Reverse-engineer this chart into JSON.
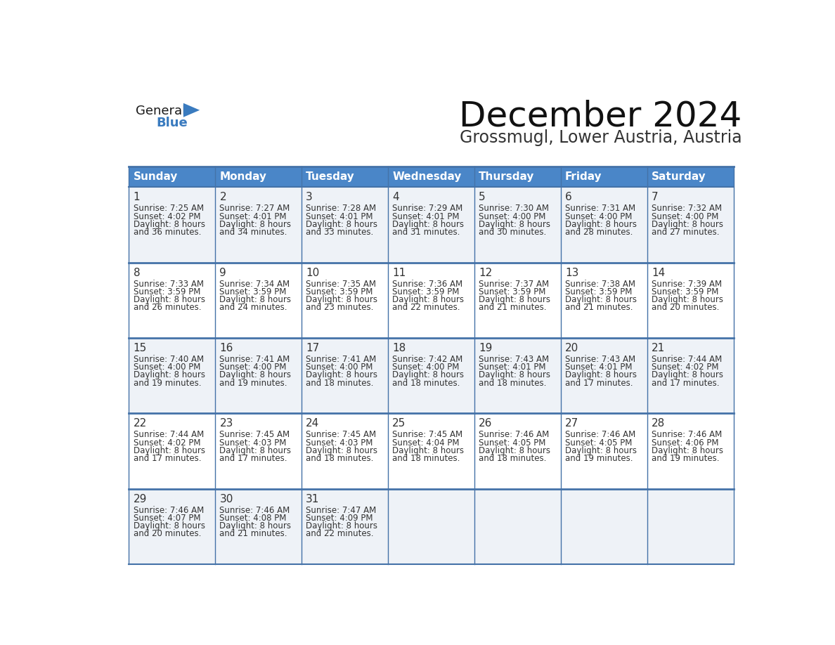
{
  "title": "December 2024",
  "subtitle": "Grossmugl, Lower Austria, Austria",
  "header_color": "#4a86c8",
  "header_text_color": "#ffffff",
  "row_bg_colors": [
    "#eef2f7",
    "#ffffff",
    "#eef2f7",
    "#ffffff",
    "#eef2f7"
  ],
  "border_color": "#4472a8",
  "text_color": "#333333",
  "day_names": [
    "Sunday",
    "Monday",
    "Tuesday",
    "Wednesday",
    "Thursday",
    "Friday",
    "Saturday"
  ],
  "days": [
    {
      "day": 1,
      "col": 0,
      "row": 0,
      "sunrise": "7:25 AM",
      "sunset": "4:02 PM",
      "daylight_h": "8 hours",
      "daylight_m": "36 minutes."
    },
    {
      "day": 2,
      "col": 1,
      "row": 0,
      "sunrise": "7:27 AM",
      "sunset": "4:01 PM",
      "daylight_h": "8 hours",
      "daylight_m": "34 minutes."
    },
    {
      "day": 3,
      "col": 2,
      "row": 0,
      "sunrise": "7:28 AM",
      "sunset": "4:01 PM",
      "daylight_h": "8 hours",
      "daylight_m": "33 minutes."
    },
    {
      "day": 4,
      "col": 3,
      "row": 0,
      "sunrise": "7:29 AM",
      "sunset": "4:01 PM",
      "daylight_h": "8 hours",
      "daylight_m": "31 minutes."
    },
    {
      "day": 5,
      "col": 4,
      "row": 0,
      "sunrise": "7:30 AM",
      "sunset": "4:00 PM",
      "daylight_h": "8 hours",
      "daylight_m": "30 minutes."
    },
    {
      "day": 6,
      "col": 5,
      "row": 0,
      "sunrise": "7:31 AM",
      "sunset": "4:00 PM",
      "daylight_h": "8 hours",
      "daylight_m": "28 minutes."
    },
    {
      "day": 7,
      "col": 6,
      "row": 0,
      "sunrise": "7:32 AM",
      "sunset": "4:00 PM",
      "daylight_h": "8 hours",
      "daylight_m": "27 minutes."
    },
    {
      "day": 8,
      "col": 0,
      "row": 1,
      "sunrise": "7:33 AM",
      "sunset": "3:59 PM",
      "daylight_h": "8 hours",
      "daylight_m": "26 minutes."
    },
    {
      "day": 9,
      "col": 1,
      "row": 1,
      "sunrise": "7:34 AM",
      "sunset": "3:59 PM",
      "daylight_h": "8 hours",
      "daylight_m": "24 minutes."
    },
    {
      "day": 10,
      "col": 2,
      "row": 1,
      "sunrise": "7:35 AM",
      "sunset": "3:59 PM",
      "daylight_h": "8 hours",
      "daylight_m": "23 minutes."
    },
    {
      "day": 11,
      "col": 3,
      "row": 1,
      "sunrise": "7:36 AM",
      "sunset": "3:59 PM",
      "daylight_h": "8 hours",
      "daylight_m": "22 minutes."
    },
    {
      "day": 12,
      "col": 4,
      "row": 1,
      "sunrise": "7:37 AM",
      "sunset": "3:59 PM",
      "daylight_h": "8 hours",
      "daylight_m": "21 minutes."
    },
    {
      "day": 13,
      "col": 5,
      "row": 1,
      "sunrise": "7:38 AM",
      "sunset": "3:59 PM",
      "daylight_h": "8 hours",
      "daylight_m": "21 minutes."
    },
    {
      "day": 14,
      "col": 6,
      "row": 1,
      "sunrise": "7:39 AM",
      "sunset": "3:59 PM",
      "daylight_h": "8 hours",
      "daylight_m": "20 minutes."
    },
    {
      "day": 15,
      "col": 0,
      "row": 2,
      "sunrise": "7:40 AM",
      "sunset": "4:00 PM",
      "daylight_h": "8 hours",
      "daylight_m": "19 minutes."
    },
    {
      "day": 16,
      "col": 1,
      "row": 2,
      "sunrise": "7:41 AM",
      "sunset": "4:00 PM",
      "daylight_h": "8 hours",
      "daylight_m": "19 minutes."
    },
    {
      "day": 17,
      "col": 2,
      "row": 2,
      "sunrise": "7:41 AM",
      "sunset": "4:00 PM",
      "daylight_h": "8 hours",
      "daylight_m": "18 minutes."
    },
    {
      "day": 18,
      "col": 3,
      "row": 2,
      "sunrise": "7:42 AM",
      "sunset": "4:00 PM",
      "daylight_h": "8 hours",
      "daylight_m": "18 minutes."
    },
    {
      "day": 19,
      "col": 4,
      "row": 2,
      "sunrise": "7:43 AM",
      "sunset": "4:01 PM",
      "daylight_h": "8 hours",
      "daylight_m": "18 minutes."
    },
    {
      "day": 20,
      "col": 5,
      "row": 2,
      "sunrise": "7:43 AM",
      "sunset": "4:01 PM",
      "daylight_h": "8 hours",
      "daylight_m": "17 minutes."
    },
    {
      "day": 21,
      "col": 6,
      "row": 2,
      "sunrise": "7:44 AM",
      "sunset": "4:02 PM",
      "daylight_h": "8 hours",
      "daylight_m": "17 minutes."
    },
    {
      "day": 22,
      "col": 0,
      "row": 3,
      "sunrise": "7:44 AM",
      "sunset": "4:02 PM",
      "daylight_h": "8 hours",
      "daylight_m": "17 minutes."
    },
    {
      "day": 23,
      "col": 1,
      "row": 3,
      "sunrise": "7:45 AM",
      "sunset": "4:03 PM",
      "daylight_h": "8 hours",
      "daylight_m": "17 minutes."
    },
    {
      "day": 24,
      "col": 2,
      "row": 3,
      "sunrise": "7:45 AM",
      "sunset": "4:03 PM",
      "daylight_h": "8 hours",
      "daylight_m": "18 minutes."
    },
    {
      "day": 25,
      "col": 3,
      "row": 3,
      "sunrise": "7:45 AM",
      "sunset": "4:04 PM",
      "daylight_h": "8 hours",
      "daylight_m": "18 minutes."
    },
    {
      "day": 26,
      "col": 4,
      "row": 3,
      "sunrise": "7:46 AM",
      "sunset": "4:05 PM",
      "daylight_h": "8 hours",
      "daylight_m": "18 minutes."
    },
    {
      "day": 27,
      "col": 5,
      "row": 3,
      "sunrise": "7:46 AM",
      "sunset": "4:05 PM",
      "daylight_h": "8 hours",
      "daylight_m": "19 minutes."
    },
    {
      "day": 28,
      "col": 6,
      "row": 3,
      "sunrise": "7:46 AM",
      "sunset": "4:06 PM",
      "daylight_h": "8 hours",
      "daylight_m": "19 minutes."
    },
    {
      "day": 29,
      "col": 0,
      "row": 4,
      "sunrise": "7:46 AM",
      "sunset": "4:07 PM",
      "daylight_h": "8 hours",
      "daylight_m": "20 minutes."
    },
    {
      "day": 30,
      "col": 1,
      "row": 4,
      "sunrise": "7:46 AM",
      "sunset": "4:08 PM",
      "daylight_h": "8 hours",
      "daylight_m": "21 minutes."
    },
    {
      "day": 31,
      "col": 2,
      "row": 4,
      "sunrise": "7:47 AM",
      "sunset": "4:09 PM",
      "daylight_h": "8 hours",
      "daylight_m": "22 minutes."
    }
  ],
  "logo_general_color": "#1a1a1a",
  "logo_blue_color": "#3a7bbf",
  "logo_triangle_color": "#3a7bbf",
  "title_fontsize": 36,
  "subtitle_fontsize": 17,
  "header_fontsize": 11,
  "day_num_fontsize": 11,
  "cell_text_fontsize": 8.5
}
